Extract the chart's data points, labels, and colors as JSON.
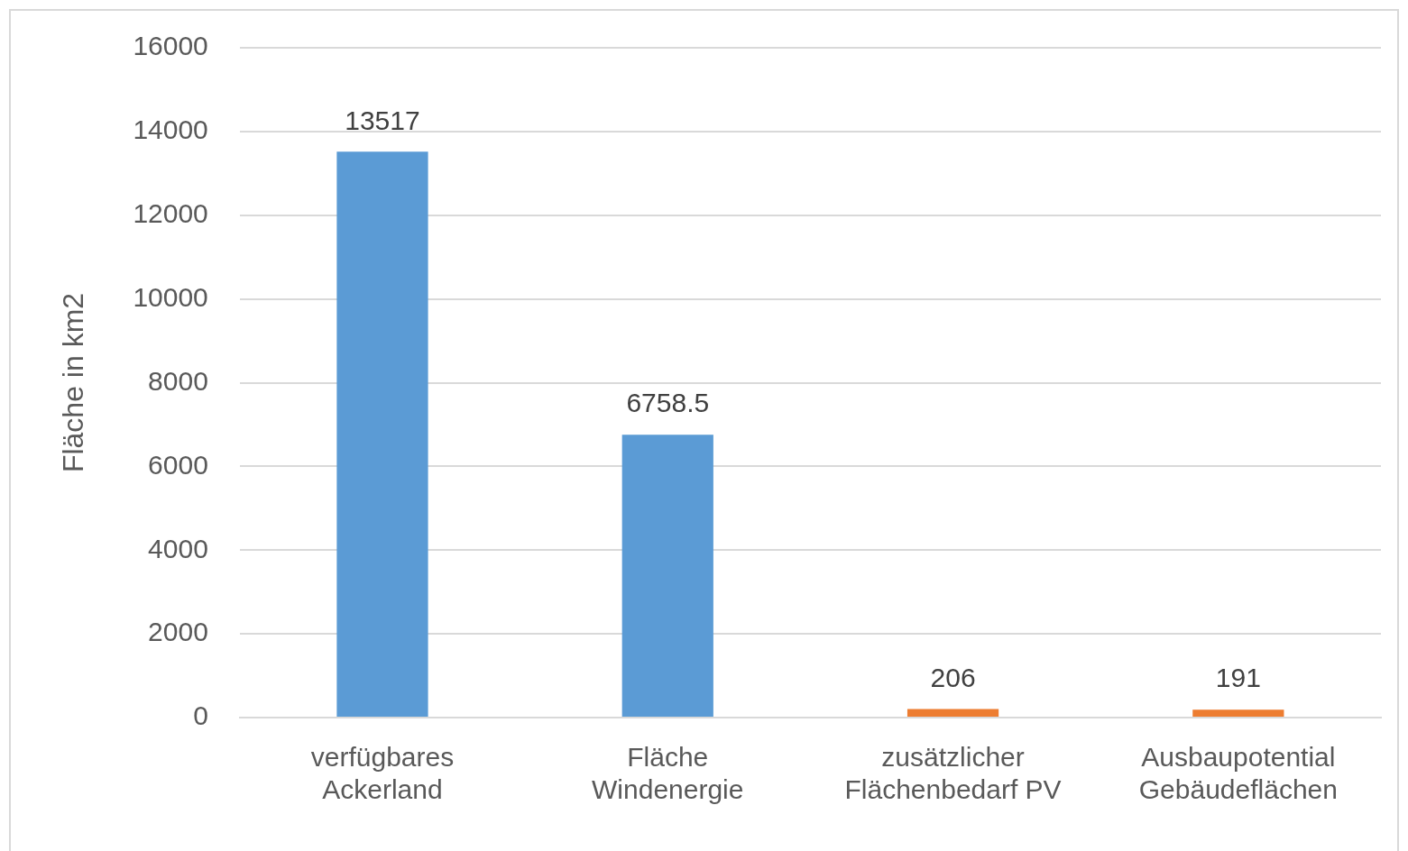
{
  "chart_data": {
    "type": "bar",
    "ylabel": "Fläche in km2",
    "categories": [
      "verfügbares Ackerland",
      "Fläche Windenergie",
      "zusätzlicher Flächenbedarf PV",
      "Ausbaupotential Gebäudeflächen"
    ],
    "values": [
      13517,
      6758.5,
      206,
      191
    ],
    "colors": [
      "#5b9bd5",
      "#5b9bd5",
      "#ed7d31",
      "#ed7d31"
    ],
    "ylim": [
      0,
      16000
    ],
    "yticks": [
      0,
      2000,
      4000,
      6000,
      8000,
      10000,
      12000,
      14000,
      16000
    ],
    "grid": "y",
    "legend": false,
    "data_labels": true
  }
}
